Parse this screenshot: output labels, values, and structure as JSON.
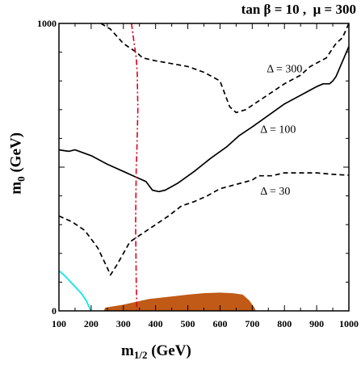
{
  "chart_data": {
    "type": "line",
    "title_parts": {
      "tanb": "tan β = 10",
      "sep": " ,  ",
      "mu": "μ = 300"
    },
    "xlabel_main": "m",
    "xlabel_sub": "1/2",
    "xlabel_unit": " (GeV)",
    "ylabel": "m0 (GeV)",
    "ylabel_main": "m",
    "ylabel_sub": "0",
    "ylabel_unit": " (GeV)",
    "xlim": [
      100,
      1000
    ],
    "ylim": [
      0,
      1000
    ],
    "x_ticks": [
      100,
      200,
      300,
      400,
      500,
      600,
      700,
      800,
      900,
      1000
    ],
    "y_tick_labels": [
      0,
      1000
    ],
    "series": [
      {
        "key": "d300",
        "style": "dashed",
        "color": "#000000",
        "label": "Δ = 300",
        "points": [
          [
            230,
            1000
          ],
          [
            260,
            980
          ],
          [
            300,
            930
          ],
          [
            340,
            900
          ],
          [
            360,
            880
          ],
          [
            400,
            870
          ],
          [
            450,
            860
          ],
          [
            500,
            850
          ],
          [
            550,
            830
          ],
          [
            600,
            800
          ],
          [
            630,
            710
          ],
          [
            650,
            690
          ],
          [
            680,
            700
          ],
          [
            720,
            730
          ],
          [
            760,
            760
          ],
          [
            800,
            790
          ],
          [
            850,
            820
          ],
          [
            880,
            850
          ],
          [
            930,
            880
          ],
          [
            960,
            930
          ],
          [
            980,
            950
          ],
          [
            1000,
            1000
          ]
        ]
      },
      {
        "key": "d100",
        "style": "solid",
        "color": "#000000",
        "label": "Δ = 100",
        "points": [
          [
            100,
            560
          ],
          [
            130,
            555
          ],
          [
            150,
            560
          ],
          [
            200,
            540
          ],
          [
            250,
            510
          ],
          [
            300,
            485
          ],
          [
            340,
            465
          ],
          [
            370,
            450
          ],
          [
            390,
            420
          ],
          [
            410,
            415
          ],
          [
            430,
            420
          ],
          [
            470,
            445
          ],
          [
            520,
            485
          ],
          [
            570,
            530
          ],
          [
            620,
            570
          ],
          [
            660,
            610
          ],
          [
            700,
            640
          ],
          [
            750,
            680
          ],
          [
            800,
            720
          ],
          [
            850,
            750
          ],
          [
            900,
            780
          ],
          [
            920,
            790
          ],
          [
            940,
            790
          ],
          [
            950,
            800
          ],
          [
            960,
            815
          ],
          [
            1000,
            920
          ]
        ]
      },
      {
        "key": "d30",
        "style": "dashed",
        "color": "#000000",
        "label": "Δ = 30",
        "points": [
          [
            100,
            330
          ],
          [
            140,
            310
          ],
          [
            180,
            280
          ],
          [
            220,
            220
          ],
          [
            250,
            150
          ],
          [
            260,
            125
          ],
          [
            280,
            160
          ],
          [
            320,
            240
          ],
          [
            360,
            270
          ],
          [
            400,
            300
          ],
          [
            440,
            330
          ],
          [
            480,
            365
          ],
          [
            520,
            380
          ],
          [
            560,
            400
          ],
          [
            600,
            425
          ],
          [
            650,
            440
          ],
          [
            700,
            455
          ],
          [
            720,
            470
          ],
          [
            760,
            470
          ],
          [
            800,
            480
          ],
          [
            850,
            480
          ],
          [
            900,
            480
          ],
          [
            950,
            475
          ],
          [
            1000,
            472
          ]
        ]
      },
      {
        "key": "limit",
        "style": "dashdot",
        "color": "#e0001a",
        "points": [
          [
            325,
            1000
          ],
          [
            330,
            960
          ],
          [
            335,
            920
          ],
          [
            340,
            880
          ],
          [
            343,
            830
          ],
          [
            345,
            700
          ],
          [
            342,
            560
          ],
          [
            340,
            500
          ],
          [
            338,
            300
          ],
          [
            340,
            100
          ],
          [
            342,
            0
          ]
        ]
      },
      {
        "key": "lsp",
        "style": "solid",
        "color": "#00e5ee",
        "points": [
          [
            100,
            140
          ],
          [
            120,
            120
          ],
          [
            145,
            90
          ],
          [
            170,
            60
          ],
          [
            185,
            35
          ],
          [
            195,
            10
          ],
          [
            198,
            0
          ]
        ]
      }
    ],
    "regions": [
      {
        "key": "excluded",
        "color": "#c05a16",
        "outline": [
          [
            240,
            0
          ],
          [
            245,
            10
          ],
          [
            270,
            15
          ],
          [
            300,
            20
          ],
          [
            340,
            30
          ],
          [
            380,
            40
          ],
          [
            420,
            45
          ],
          [
            460,
            50
          ],
          [
            500,
            55
          ],
          [
            550,
            60
          ],
          [
            600,
            62
          ],
          [
            640,
            60
          ],
          [
            670,
            55
          ],
          [
            690,
            35
          ],
          [
            705,
            12
          ],
          [
            710,
            0
          ]
        ]
      }
    ],
    "annotations": [
      {
        "for": "d300",
        "text": "Δ = 300",
        "x": 745,
        "y": 830
      },
      {
        "for": "d100",
        "text": "Δ = 100",
        "x": 725,
        "y": 620
      },
      {
        "for": "d30",
        "text": "Δ = 30",
        "x": 725,
        "y": 405
      }
    ]
  }
}
